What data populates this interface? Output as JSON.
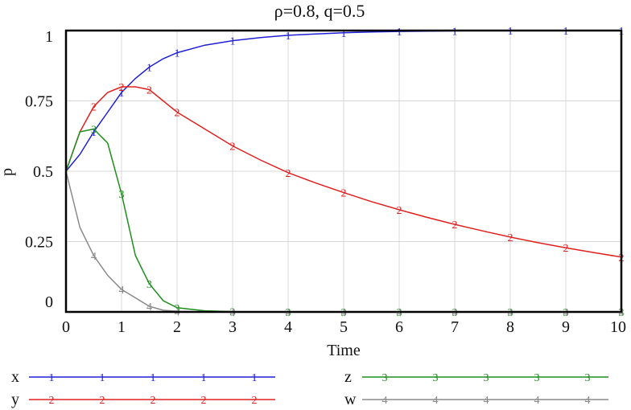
{
  "chart_data": {
    "type": "line",
    "title": "ρ=0.8,  q=0.5",
    "xlabel": "Time",
    "ylabel": "p",
    "xlim": [
      0,
      10
    ],
    "ylim": [
      0,
      1
    ],
    "x_ticks": [
      "0",
      "1",
      "2",
      "3",
      "4",
      "5",
      "6",
      "7",
      "8",
      "9",
      "10"
    ],
    "y_ticks": [
      "0",
      "0.25",
      "0.5",
      "0.75",
      "1"
    ],
    "grid": true,
    "legend_position": "bottom",
    "x": [
      0,
      0.25,
      0.5,
      0.75,
      1,
      1.25,
      1.5,
      1.75,
      2,
      2.5,
      3,
      3.5,
      4,
      4.5,
      5,
      5.5,
      6,
      6.5,
      7,
      7.5,
      8,
      8.5,
      9,
      9.5,
      10
    ],
    "series": [
      {
        "name": "x",
        "marker": "1",
        "color": "#1f1fd6",
        "values": [
          0.5,
          0.56,
          0.64,
          0.71,
          0.78,
          0.83,
          0.87,
          0.9,
          0.921,
          0.948,
          0.964,
          0.975,
          0.983,
          0.988,
          0.992,
          0.995,
          0.997,
          0.998,
          0.999,
          1.0,
          1.0,
          1.0,
          1.0,
          1.0,
          1.0
        ]
      },
      {
        "name": "y",
        "marker": "2",
        "color": "#e0201f",
        "values": [
          0.5,
          0.64,
          0.73,
          0.78,
          0.8,
          0.8,
          0.79,
          0.75,
          0.71,
          0.65,
          0.59,
          0.54,
          0.495,
          0.458,
          0.424,
          0.392,
          0.363,
          0.336,
          0.311,
          0.288,
          0.266,
          0.246,
          0.228,
          0.211,
          0.195
        ]
      },
      {
        "name": "z",
        "marker": "3",
        "color": "#1e8f1e",
        "values": [
          0.5,
          0.64,
          0.65,
          0.6,
          0.42,
          0.2,
          0.1,
          0.04,
          0.015,
          0.004,
          0.001,
          0,
          0,
          0,
          0,
          0,
          0,
          0,
          0,
          0,
          0,
          0,
          0,
          0,
          0
        ]
      },
      {
        "name": "w",
        "marker": "4",
        "color": "#8a8a8a",
        "values": [
          0.5,
          0.3,
          0.2,
          0.13,
          0.08,
          0.05,
          0.02,
          0.006,
          0.002,
          0,
          0,
          0,
          0,
          0,
          0,
          0,
          0,
          0,
          0,
          0,
          0,
          0,
          0,
          0,
          0
        ]
      }
    ]
  }
}
